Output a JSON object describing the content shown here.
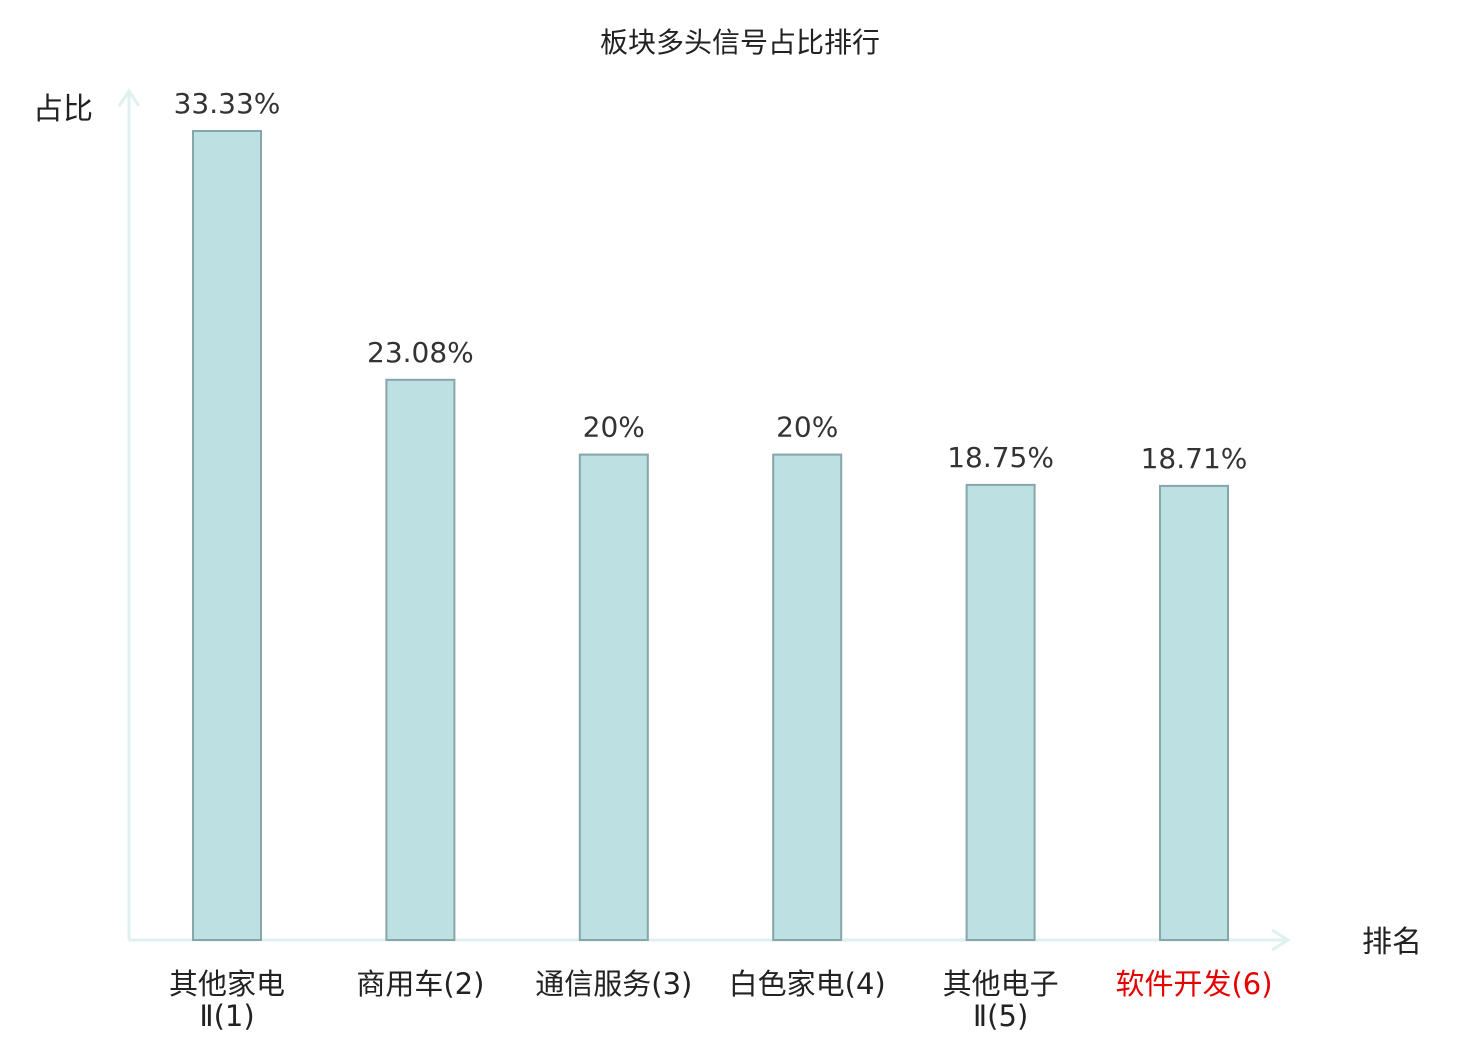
{
  "chart_data": {
    "type": "bar",
    "title": "板块多头信号占比排行",
    "xlabel": "排名",
    "ylabel": "占比",
    "categories": [
      {
        "line1": "其他家电",
        "line2": "Ⅱ(1)"
      },
      {
        "line1": "商用车(2)",
        "line2": ""
      },
      {
        "line1": "通信服务(3)",
        "line2": ""
      },
      {
        "line1": "白色家电(4)",
        "line2": ""
      },
      {
        "line1": "其他电子",
        "line2": "Ⅱ(5)"
      },
      {
        "line1": "软件开发(6)",
        "line2": ""
      }
    ],
    "values": [
      33.33,
      23.08,
      20,
      20,
      18.75,
      18.71
    ],
    "value_labels": [
      "33.33%",
      "23.08%",
      "20%",
      "20%",
      "18.75%",
      "18.71%"
    ],
    "highlight_index": 5,
    "ylim": [
      0,
      34
    ],
    "grid": false,
    "legend": "none"
  },
  "colors": {
    "bar_fill": "#bde0e3",
    "bar_stroke": "#86a6a9",
    "axis": "#dff1ee",
    "text": "#222222",
    "highlight_text": "#e60000"
  }
}
